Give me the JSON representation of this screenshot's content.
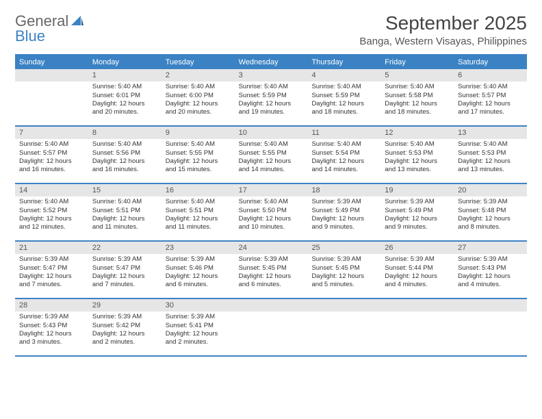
{
  "logo": {
    "word1": "General",
    "word2": "Blue"
  },
  "title": "September 2025",
  "location": "Banga, Western Visayas, Philippines",
  "colors": {
    "accent": "#3b82c4",
    "header_bg": "#3b82c4",
    "daynum_bg": "#e6e6e6",
    "text": "#333333",
    "background": "#ffffff"
  },
  "weekdays": [
    "Sunday",
    "Monday",
    "Tuesday",
    "Wednesday",
    "Thursday",
    "Friday",
    "Saturday"
  ],
  "weeks": [
    [
      null,
      {
        "n": "1",
        "sr": "Sunrise: 5:40 AM",
        "ss": "Sunset: 6:01 PM",
        "dl": "Daylight: 12 hours and 20 minutes."
      },
      {
        "n": "2",
        "sr": "Sunrise: 5:40 AM",
        "ss": "Sunset: 6:00 PM",
        "dl": "Daylight: 12 hours and 20 minutes."
      },
      {
        "n": "3",
        "sr": "Sunrise: 5:40 AM",
        "ss": "Sunset: 5:59 PM",
        "dl": "Daylight: 12 hours and 19 minutes."
      },
      {
        "n": "4",
        "sr": "Sunrise: 5:40 AM",
        "ss": "Sunset: 5:59 PM",
        "dl": "Daylight: 12 hours and 18 minutes."
      },
      {
        "n": "5",
        "sr": "Sunrise: 5:40 AM",
        "ss": "Sunset: 5:58 PM",
        "dl": "Daylight: 12 hours and 18 minutes."
      },
      {
        "n": "6",
        "sr": "Sunrise: 5:40 AM",
        "ss": "Sunset: 5:57 PM",
        "dl": "Daylight: 12 hours and 17 minutes."
      }
    ],
    [
      {
        "n": "7",
        "sr": "Sunrise: 5:40 AM",
        "ss": "Sunset: 5:57 PM",
        "dl": "Daylight: 12 hours and 16 minutes."
      },
      {
        "n": "8",
        "sr": "Sunrise: 5:40 AM",
        "ss": "Sunset: 5:56 PM",
        "dl": "Daylight: 12 hours and 16 minutes."
      },
      {
        "n": "9",
        "sr": "Sunrise: 5:40 AM",
        "ss": "Sunset: 5:55 PM",
        "dl": "Daylight: 12 hours and 15 minutes."
      },
      {
        "n": "10",
        "sr": "Sunrise: 5:40 AM",
        "ss": "Sunset: 5:55 PM",
        "dl": "Daylight: 12 hours and 14 minutes."
      },
      {
        "n": "11",
        "sr": "Sunrise: 5:40 AM",
        "ss": "Sunset: 5:54 PM",
        "dl": "Daylight: 12 hours and 14 minutes."
      },
      {
        "n": "12",
        "sr": "Sunrise: 5:40 AM",
        "ss": "Sunset: 5:53 PM",
        "dl": "Daylight: 12 hours and 13 minutes."
      },
      {
        "n": "13",
        "sr": "Sunrise: 5:40 AM",
        "ss": "Sunset: 5:53 PM",
        "dl": "Daylight: 12 hours and 13 minutes."
      }
    ],
    [
      {
        "n": "14",
        "sr": "Sunrise: 5:40 AM",
        "ss": "Sunset: 5:52 PM",
        "dl": "Daylight: 12 hours and 12 minutes."
      },
      {
        "n": "15",
        "sr": "Sunrise: 5:40 AM",
        "ss": "Sunset: 5:51 PM",
        "dl": "Daylight: 12 hours and 11 minutes."
      },
      {
        "n": "16",
        "sr": "Sunrise: 5:40 AM",
        "ss": "Sunset: 5:51 PM",
        "dl": "Daylight: 12 hours and 11 minutes."
      },
      {
        "n": "17",
        "sr": "Sunrise: 5:40 AM",
        "ss": "Sunset: 5:50 PM",
        "dl": "Daylight: 12 hours and 10 minutes."
      },
      {
        "n": "18",
        "sr": "Sunrise: 5:39 AM",
        "ss": "Sunset: 5:49 PM",
        "dl": "Daylight: 12 hours and 9 minutes."
      },
      {
        "n": "19",
        "sr": "Sunrise: 5:39 AM",
        "ss": "Sunset: 5:49 PM",
        "dl": "Daylight: 12 hours and 9 minutes."
      },
      {
        "n": "20",
        "sr": "Sunrise: 5:39 AM",
        "ss": "Sunset: 5:48 PM",
        "dl": "Daylight: 12 hours and 8 minutes."
      }
    ],
    [
      {
        "n": "21",
        "sr": "Sunrise: 5:39 AM",
        "ss": "Sunset: 5:47 PM",
        "dl": "Daylight: 12 hours and 7 minutes."
      },
      {
        "n": "22",
        "sr": "Sunrise: 5:39 AM",
        "ss": "Sunset: 5:47 PM",
        "dl": "Daylight: 12 hours and 7 minutes."
      },
      {
        "n": "23",
        "sr": "Sunrise: 5:39 AM",
        "ss": "Sunset: 5:46 PM",
        "dl": "Daylight: 12 hours and 6 minutes."
      },
      {
        "n": "24",
        "sr": "Sunrise: 5:39 AM",
        "ss": "Sunset: 5:45 PM",
        "dl": "Daylight: 12 hours and 6 minutes."
      },
      {
        "n": "25",
        "sr": "Sunrise: 5:39 AM",
        "ss": "Sunset: 5:45 PM",
        "dl": "Daylight: 12 hours and 5 minutes."
      },
      {
        "n": "26",
        "sr": "Sunrise: 5:39 AM",
        "ss": "Sunset: 5:44 PM",
        "dl": "Daylight: 12 hours and 4 minutes."
      },
      {
        "n": "27",
        "sr": "Sunrise: 5:39 AM",
        "ss": "Sunset: 5:43 PM",
        "dl": "Daylight: 12 hours and 4 minutes."
      }
    ],
    [
      {
        "n": "28",
        "sr": "Sunrise: 5:39 AM",
        "ss": "Sunset: 5:43 PM",
        "dl": "Daylight: 12 hours and 3 minutes."
      },
      {
        "n": "29",
        "sr": "Sunrise: 5:39 AM",
        "ss": "Sunset: 5:42 PM",
        "dl": "Daylight: 12 hours and 2 minutes."
      },
      {
        "n": "30",
        "sr": "Sunrise: 5:39 AM",
        "ss": "Sunset: 5:41 PM",
        "dl": "Daylight: 12 hours and 2 minutes."
      },
      null,
      null,
      null,
      null
    ]
  ]
}
